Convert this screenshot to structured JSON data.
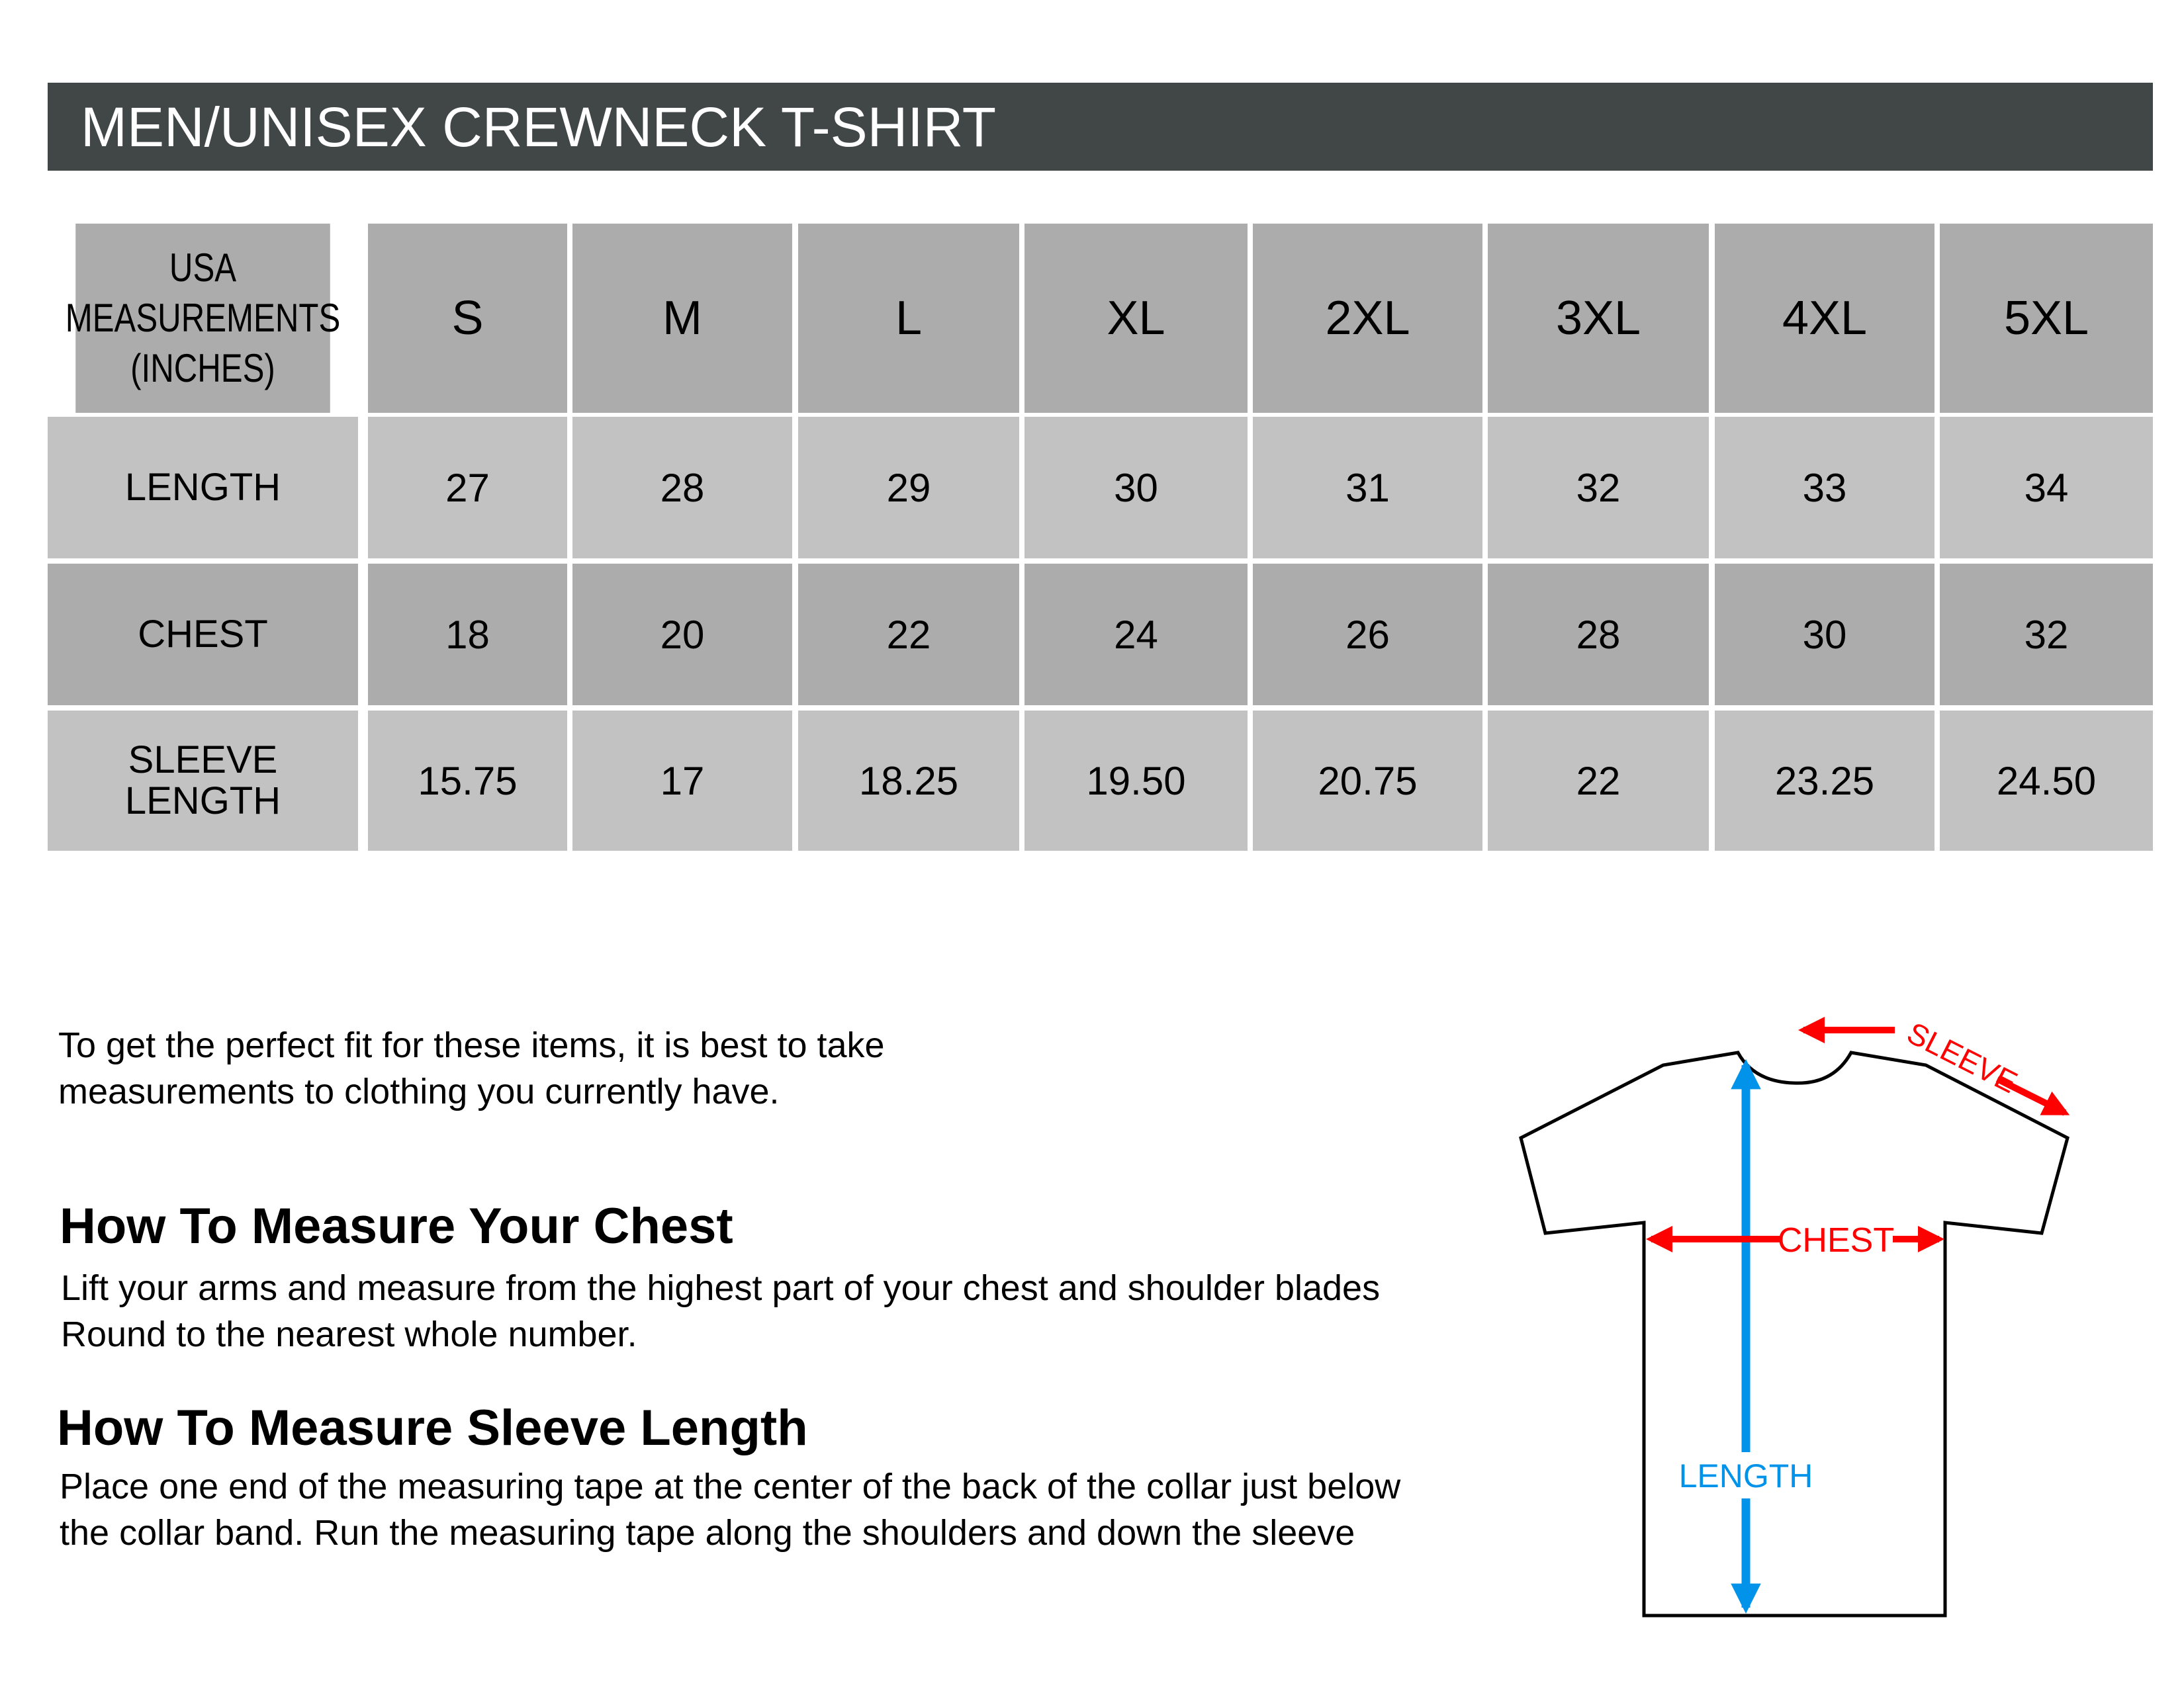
{
  "title": "MEN/UNISEX CREWNECK T-SHIRT",
  "table": {
    "corner_label": "USA\nMEASUREMENTS\n(INCHES)",
    "sizes": [
      "S",
      "M",
      "L",
      "XL",
      "2XL",
      "3XL",
      "4XL",
      "5XL"
    ],
    "rows": [
      {
        "label": "LENGTH",
        "values": [
          "27",
          "28",
          "29",
          "30",
          "31",
          "32",
          "33",
          "34"
        ]
      },
      {
        "label": "CHEST",
        "values": [
          "18",
          "20",
          "22",
          "24",
          "26",
          "28",
          "30",
          "32"
        ]
      },
      {
        "label": "SLEEVE\nLENGTH",
        "values": [
          "15.75",
          "17",
          "18.25",
          "19.50",
          "20.75",
          "22",
          "23.25",
          "24.50"
        ]
      }
    ]
  },
  "intro": {
    "line1": "To get the perfect fit for these items, it is best to take",
    "line2": "measurements to clothing you currently have."
  },
  "chest_section": {
    "heading": "How To Measure Your Chest",
    "line1": "Lift your arms and measure from the highest part of your chest and shoulder blades",
    "line2": "Round to the nearest whole number."
  },
  "sleeve_section": {
    "heading": "How To Measure Sleeve Length",
    "line1": "Place one end of the measuring tape at the center of the back of the collar just below",
    "line2": "the collar band. Run the measuring tape along the shoulders and down the sleeve"
  },
  "diagram": {
    "sleeve_label": "SLEEVE",
    "chest_label": "CHEST",
    "length_label": "LENGTH",
    "colors": {
      "red": "#ff0000",
      "blue": "#0093e9",
      "title_bar": "#414747",
      "cell_dark": "#acacac",
      "cell_light": "#c2c2c2"
    }
  }
}
